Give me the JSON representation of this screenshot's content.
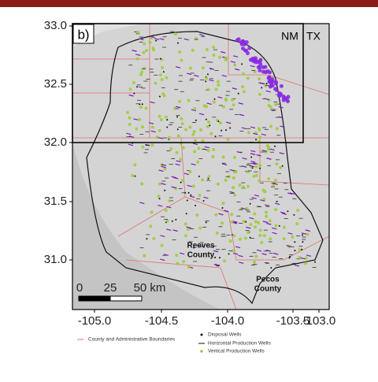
{
  "panel_label": "b)",
  "state_labels": [
    "NM",
    "TX"
  ],
  "y_axis": {
    "ticks": [
      "33.0",
      "32.5",
      "32.0",
      "31.5",
      "31.0"
    ]
  },
  "x_axis": {
    "ticks": [
      "-105.0",
      "-104.5",
      "-104.0",
      "-103.5",
      "-103.0"
    ]
  },
  "county_labels": [
    [
      "Reeves",
      "County"
    ],
    [
      "Pecos",
      "County"
    ]
  ],
  "scale_bar": {
    "labels": [
      "0",
      "25",
      "50 km"
    ]
  },
  "legend": {
    "items": [
      "County and Administrative Boundaries",
      "Disposal Wells",
      "Horizontal Production Wells",
      "Vertical Production Wells"
    ]
  }
}
